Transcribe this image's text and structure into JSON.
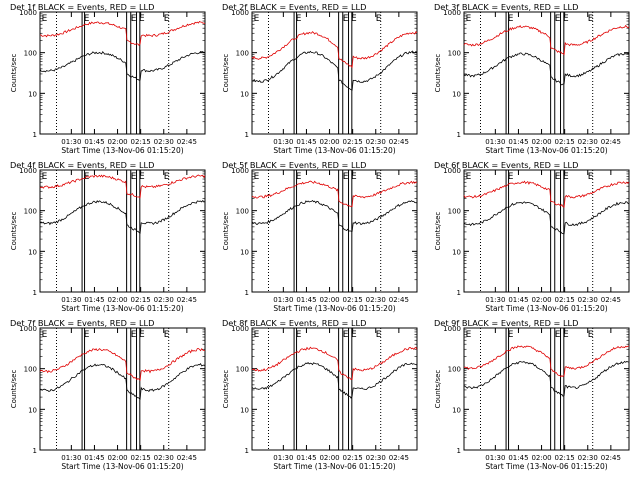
{
  "chart_data": [
    {
      "type": "line",
      "title": "Det 1f BLACK = Events, RED = LLD",
      "xlabel": "Start Time (13-Nov-06 01:15:20)",
      "ylabel": "Counts/sec",
      "yscale": "log",
      "ylim": [
        1,
        1000
      ],
      "x_ticks": [
        "01:30",
        "01:45",
        "02:00",
        "02:15",
        "02:30",
        "02:45"
      ],
      "y_ticks": [
        "1",
        "10",
        "100",
        "1000"
      ],
      "annotations": [
        "E",
        "E"
      ],
      "series": [
        {
          "color": "#e00000",
          "level": 380,
          "amp": 0.18
        },
        {
          "color": "#000000",
          "level": 60,
          "amp": 0.25
        }
      ]
    },
    {
      "type": "line",
      "title": "Det 2f BLACK = Events, RED = LLD",
      "xlabel": "Start Time (13-Nov-06 01:15:20)",
      "ylabel": "Counts/sec",
      "yscale": "log",
      "ylim": [
        1,
        1000
      ],
      "x_ticks": [
        "01:30",
        "01:45",
        "02:00",
        "02:15",
        "02:30",
        "02:45"
      ],
      "y_ticks": [
        "1",
        "10",
        "100",
        "1000"
      ],
      "annotations": [
        "E",
        "E"
      ],
      "series": [
        {
          "color": "#e00000",
          "level": 150,
          "amp": 0.35
        },
        {
          "color": "#000000",
          "level": 45,
          "amp": 0.4
        }
      ]
    },
    {
      "type": "line",
      "title": "Det 3f BLACK = Events, RED = LLD",
      "xlabel": "Start Time (13-Nov-06 01:15:20)",
      "ylabel": "Counts/sec",
      "yscale": "log",
      "ylim": [
        1,
        1000
      ],
      "x_ticks": [
        "01:30",
        "01:45",
        "02:00",
        "02:15",
        "02:30",
        "02:45"
      ],
      "y_ticks": [
        "1",
        "10",
        "100",
        "1000"
      ],
      "annotations": [
        "E",
        "E"
      ],
      "series": [
        {
          "color": "#e00000",
          "level": 260,
          "amp": 0.25
        },
        {
          "color": "#000000",
          "level": 50,
          "amp": 0.3
        }
      ]
    },
    {
      "type": "line",
      "title": "Det 4f BLACK = Events, RED = LLD",
      "xlabel": "Start Time (13-Nov-06 01:15:20)",
      "ylabel": "Counts/sec",
      "yscale": "log",
      "ylim": [
        1,
        1000
      ],
      "x_ticks": [
        "01:30",
        "01:45",
        "02:00",
        "02:15",
        "02:30",
        "02:45"
      ],
      "y_ticks": [
        "1",
        "10",
        "100",
        "1000"
      ],
      "annotations": [
        "E",
        "E"
      ],
      "series": [
        {
          "color": "#e00000",
          "level": 520,
          "amp": 0.15
        },
        {
          "color": "#000000",
          "level": 90,
          "amp": 0.3
        }
      ]
    },
    {
      "type": "line",
      "title": "Det 5f BLACK = Events, RED = LLD",
      "xlabel": "Start Time (13-Nov-06 01:15:20)",
      "ylabel": "Counts/sec",
      "yscale": "log",
      "ylim": [
        1,
        1000
      ],
      "x_ticks": [
        "01:30",
        "01:45",
        "02:00",
        "02:15",
        "02:30",
        "02:45"
      ],
      "y_ticks": [
        "1",
        "10",
        "100",
        "1000"
      ],
      "annotations": [
        "E",
        "E"
      ],
      "series": [
        {
          "color": "#e00000",
          "level": 330,
          "amp": 0.2
        },
        {
          "color": "#000000",
          "level": 90,
          "amp": 0.3
        }
      ]
    },
    {
      "type": "line",
      "title": "Det 6f BLACK = Events, RED = LLD",
      "xlabel": "Start Time (13-Nov-06 01:15:20)",
      "ylabel": "Counts/sec",
      "yscale": "log",
      "ylim": [
        1,
        1000
      ],
      "x_ticks": [
        "01:30",
        "01:45",
        "02:00",
        "02:15",
        "02:30",
        "02:45"
      ],
      "y_ticks": [
        "1",
        "10",
        "100",
        "1000"
      ],
      "annotations": [
        "E",
        "E"
      ],
      "series": [
        {
          "color": "#e00000",
          "level": 330,
          "amp": 0.2
        },
        {
          "color": "#000000",
          "level": 85,
          "amp": 0.3
        }
      ]
    },
    {
      "type": "line",
      "title": "Det 7f BLACK = Events, RED = LLD",
      "xlabel": "Start Time (13-Nov-06 01:15:20)",
      "ylabel": "Counts/sec",
      "yscale": "log",
      "ylim": [
        1,
        1000
      ],
      "x_ticks": [
        "01:30",
        "01:45",
        "02:00",
        "02:15",
        "02:30",
        "02:45"
      ],
      "y_ticks": [
        "1",
        "10",
        "100",
        "1000"
      ],
      "annotations": [
        "E",
        "E"
      ],
      "series": [
        {
          "color": "#e00000",
          "level": 160,
          "amp": 0.3
        },
        {
          "color": "#000000",
          "level": 60,
          "amp": 0.35
        }
      ]
    },
    {
      "type": "line",
      "title": "Det 8f BLACK = Events, RED = LLD",
      "xlabel": "Start Time (13-Nov-06 01:15:20)",
      "ylabel": "Counts/sec",
      "yscale": "log",
      "ylim": [
        1,
        1000
      ],
      "x_ticks": [
        "01:30",
        "01:45",
        "02:00",
        "02:15",
        "02:30",
        "02:45"
      ],
      "y_ticks": [
        "1",
        "10",
        "100",
        "1000"
      ],
      "annotations": [
        "E",
        "E"
      ],
      "series": [
        {
          "color": "#e00000",
          "level": 170,
          "amp": 0.3
        },
        {
          "color": "#000000",
          "level": 65,
          "amp": 0.35
        }
      ]
    },
    {
      "type": "line",
      "title": "Det 9f BLACK = Events, RED = LLD",
      "xlabel": "Start Time (13-Nov-06 01:15:20)",
      "ylabel": "Counts/sec",
      "yscale": "log",
      "ylim": [
        1,
        1000
      ],
      "x_ticks": [
        "01:30",
        "01:45",
        "02:00",
        "02:15",
        "02:30",
        "02:45"
      ],
      "y_ticks": [
        "1",
        "10",
        "100",
        "1000"
      ],
      "annotations": [
        "E",
        "E"
      ],
      "series": [
        {
          "color": "#e00000",
          "level": 190,
          "amp": 0.3
        },
        {
          "color": "#000000",
          "level": 70,
          "amp": 0.35
        }
      ]
    }
  ]
}
